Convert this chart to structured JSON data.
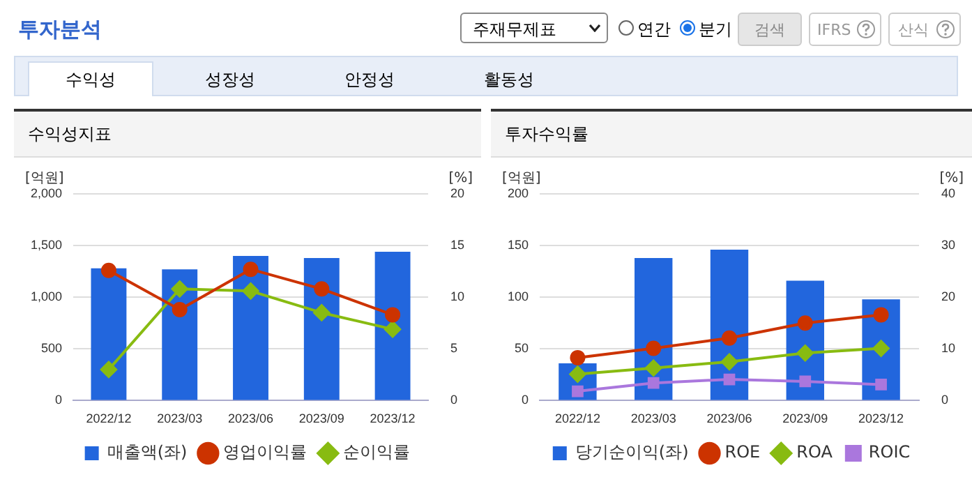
{
  "chart_data": [
    {
      "type": "other",
      "annotations": [
        "투자분석",
        "주재무제표",
        "연간",
        "분기",
        "검색",
        "IFRS",
        "산식",
        "수익성",
        "성장성",
        "안정성",
        "활동성"
      ]
    },
    {
      "type": "bar",
      "title": "수익성지표",
      "ylabel": "[억원]",
      "y2label": "[%]",
      "categories": [
        "2022/12",
        "2023/03",
        "2023/06",
        "2023/09",
        "2023/12"
      ],
      "ylim": [
        0,
        2000
      ],
      "yticks": [
        0,
        500,
        {
          "value": 1000,
          "label": "1,000"
        },
        {
          "value": 1500,
          "label": "1,500"
        },
        {
          "value": 2000,
          "label": "2,000"
        }
      ],
      "y2lim": [
        0,
        20
      ],
      "y2ticks": [
        0,
        5,
        10,
        15,
        20
      ],
      "grid": "y",
      "legend": "bottom",
      "series": [
        {
          "name": "매출액(좌)",
          "color": "#2266dd",
          "values": [
            1280,
            1270,
            1400,
            1380,
            1440
          ]
        },
        {
          "name": "영업이익률",
          "type": "line",
          "axis": "y2",
          "marker": "circle",
          "color": "#cc3300",
          "values": [
            12.6,
            8.8,
            12.7,
            10.8,
            8.3
          ]
        },
        {
          "name": "순이익률",
          "type": "line",
          "axis": "y2",
          "marker": "diamond",
          "color": "#88bb11",
          "values": [
            3.0,
            10.8,
            10.6,
            8.5,
            6.9
          ]
        }
      ]
    },
    {
      "type": "bar",
      "title": "투자수익률",
      "ylabel": "[억원]",
      "y2label": "[%]",
      "categories": [
        "2022/12",
        "2023/03",
        "2023/06",
        "2023/09",
        "2023/12"
      ],
      "ylim": [
        0,
        200
      ],
      "yticks": [
        0,
        50,
        100,
        150,
        200
      ],
      "y2lim": [
        0,
        40
      ],
      "y2ticks": [
        0,
        10,
        20,
        30,
        40
      ],
      "grid": "y",
      "legend": "bottom",
      "series": [
        {
          "name": "당기순이익(좌)",
          "color": "#2266dd",
          "values": [
            36,
            138,
            146,
            116,
            98
          ]
        },
        {
          "name": "ROE",
          "type": "line",
          "axis": "y2",
          "marker": "circle",
          "color": "#cc3300",
          "values": [
            8.3,
            10.1,
            12.1,
            15.0,
            16.6
          ]
        },
        {
          "name": "ROA",
          "type": "line",
          "axis": "y2",
          "marker": "diamond",
          "color": "#88bb11",
          "values": [
            5.1,
            6.3,
            7.5,
            9.2,
            10.1
          ]
        },
        {
          "name": "ROIC",
          "type": "line",
          "axis": "y2",
          "marker": "square",
          "color": "#aa77dd",
          "values": [
            1.8,
            3.4,
            4.1,
            3.7,
            3.1
          ]
        }
      ]
    }
  ]
}
